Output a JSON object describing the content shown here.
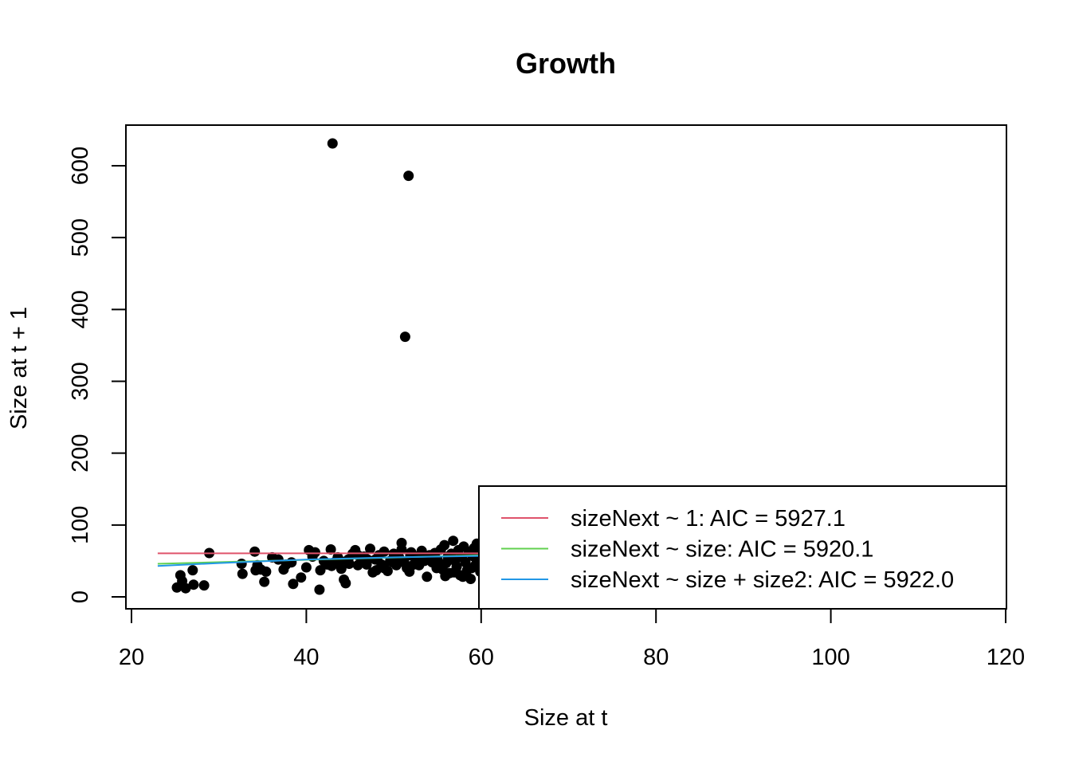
{
  "chart_data": {
    "type": "scatter",
    "title": "Growth",
    "xlabel": "Size at t",
    "ylabel": "Size at t + 1",
    "xlim": [
      20,
      120
    ],
    "ylim": [
      0,
      650
    ],
    "xticks": [
      20,
      40,
      60,
      80,
      100,
      120
    ],
    "yticks": [
      0,
      100,
      200,
      300,
      400,
      500,
      600
    ],
    "grid": false,
    "point_color": "#000000",
    "points": [
      {
        "x": 25.2,
        "y": 13
      },
      {
        "x": 25.6,
        "y": 30
      },
      {
        "x": 25.8,
        "y": 22
      },
      {
        "x": 26.2,
        "y": 12
      },
      {
        "x": 27.0,
        "y": 37
      },
      {
        "x": 27.1,
        "y": 17
      },
      {
        "x": 28.3,
        "y": 16
      },
      {
        "x": 28.9,
        "y": 61
      },
      {
        "x": 32.6,
        "y": 46
      },
      {
        "x": 32.7,
        "y": 32
      },
      {
        "x": 34.1,
        "y": 63
      },
      {
        "x": 34.2,
        "y": 37
      },
      {
        "x": 34.4,
        "y": 44
      },
      {
        "x": 34.8,
        "y": 38
      },
      {
        "x": 35.2,
        "y": 21
      },
      {
        "x": 35.4,
        "y": 35
      },
      {
        "x": 36.1,
        "y": 55
      },
      {
        "x": 36.8,
        "y": 52
      },
      {
        "x": 37.4,
        "y": 38
      },
      {
        "x": 37.7,
        "y": 45
      },
      {
        "x": 38.3,
        "y": 48
      },
      {
        "x": 38.5,
        "y": 18
      },
      {
        "x": 39.4,
        "y": 27
      },
      {
        "x": 40.0,
        "y": 41
      },
      {
        "x": 40.3,
        "y": 65
      },
      {
        "x": 40.7,
        "y": 56
      },
      {
        "x": 41.0,
        "y": 62
      },
      {
        "x": 41.5,
        "y": 10
      },
      {
        "x": 41.6,
        "y": 37
      },
      {
        "x": 42.0,
        "y": 50
      },
      {
        "x": 42.4,
        "y": 45
      },
      {
        "x": 42.8,
        "y": 66
      },
      {
        "x": 43.0,
        "y": 631
      },
      {
        "x": 43.2,
        "y": 48
      },
      {
        "x": 43.6,
        "y": 55
      },
      {
        "x": 44.0,
        "y": 39
      },
      {
        "x": 44.3,
        "y": 24
      },
      {
        "x": 44.5,
        "y": 19
      },
      {
        "x": 44.8,
        "y": 52
      },
      {
        "x": 45.3,
        "y": 60
      },
      {
        "x": 45.6,
        "y": 65
      },
      {
        "x": 45.9,
        "y": 44
      },
      {
        "x": 46.3,
        "y": 48
      },
      {
        "x": 46.6,
        "y": 56
      },
      {
        "x": 47.0,
        "y": 52
      },
      {
        "x": 47.3,
        "y": 67
      },
      {
        "x": 47.6,
        "y": 34
      },
      {
        "x": 48.0,
        "y": 37
      },
      {
        "x": 48.3,
        "y": 58
      },
      {
        "x": 48.6,
        "y": 45
      },
      {
        "x": 48.9,
        "y": 63
      },
      {
        "x": 49.3,
        "y": 36
      },
      {
        "x": 49.6,
        "y": 50
      },
      {
        "x": 50.0,
        "y": 60
      },
      {
        "x": 50.3,
        "y": 44
      },
      {
        "x": 50.6,
        "y": 55
      },
      {
        "x": 50.9,
        "y": 75
      },
      {
        "x": 51.2,
        "y": 48
      },
      {
        "x": 51.3,
        "y": 362
      },
      {
        "x": 51.5,
        "y": 40
      },
      {
        "x": 51.7,
        "y": 586
      },
      {
        "x": 51.8,
        "y": 35
      },
      {
        "x": 52.0,
        "y": 62
      },
      {
        "x": 52.3,
        "y": 45
      },
      {
        "x": 52.6,
        "y": 53
      },
      {
        "x": 52.9,
        "y": 57
      },
      {
        "x": 53.2,
        "y": 64
      },
      {
        "x": 53.5,
        "y": 50
      },
      {
        "x": 53.8,
        "y": 28
      },
      {
        "x": 54.1,
        "y": 58
      },
      {
        "x": 54.4,
        "y": 48
      },
      {
        "x": 54.7,
        "y": 61
      },
      {
        "x": 55.0,
        "y": 52
      },
      {
        "x": 55.2,
        "y": 44
      },
      {
        "x": 55.4,
        "y": 66
      },
      {
        "x": 55.6,
        "y": 38
      },
      {
        "x": 55.8,
        "y": 72
      },
      {
        "x": 56.0,
        "y": 47
      },
      {
        "x": 56.2,
        "y": 56
      },
      {
        "x": 56.4,
        "y": 33
      },
      {
        "x": 56.6,
        "y": 60
      },
      {
        "x": 56.8,
        "y": 78
      },
      {
        "x": 57.0,
        "y": 50
      },
      {
        "x": 57.2,
        "y": 42
      },
      {
        "x": 57.4,
        "y": 65
      },
      {
        "x": 57.6,
        "y": 30
      },
      {
        "x": 57.8,
        "y": 55
      },
      {
        "x": 58.0,
        "y": 70
      },
      {
        "x": 58.2,
        "y": 48
      },
      {
        "x": 58.4,
        "y": 37
      },
      {
        "x": 58.6,
        "y": 63
      },
      {
        "x": 58.8,
        "y": 25
      },
      {
        "x": 59.0,
        "y": 57
      },
      {
        "x": 59.2,
        "y": 68
      },
      {
        "x": 59.4,
        "y": 45
      },
      {
        "x": 59.6,
        "y": 52
      },
      {
        "x": 59.8,
        "y": 60
      },
      {
        "x": 59.9,
        "y": 35
      },
      {
        "x": 59.5,
        "y": 74
      },
      {
        "x": 58.9,
        "y": 40
      },
      {
        "x": 57.9,
        "y": 28
      },
      {
        "x": 56.9,
        "y": 34
      },
      {
        "x": 55.9,
        "y": 29
      },
      {
        "x": 54.9,
        "y": 40
      },
      {
        "x": 53.9,
        "y": 55
      },
      {
        "x": 52.9,
        "y": 44
      },
      {
        "x": 51.9,
        "y": 58
      },
      {
        "x": 50.9,
        "y": 66
      },
      {
        "x": 49.9,
        "y": 48
      },
      {
        "x": 48.9,
        "y": 40
      },
      {
        "x": 47.9,
        "y": 52
      },
      {
        "x": 46.9,
        "y": 45
      },
      {
        "x": 45.9,
        "y": 58
      },
      {
        "x": 44.9,
        "y": 46
      },
      {
        "x": 43.9,
        "y": 50
      },
      {
        "x": 42.9,
        "y": 43
      }
    ],
    "series": [
      {
        "name": "sizeNext ~ 1: AIC = 5927.1",
        "color": "#DF536B",
        "x": [
          23,
          60
        ],
        "y": [
          60.5,
          60.5
        ]
      },
      {
        "name": "sizeNext ~ size: AIC = 5920.1",
        "color": "#61D04F",
        "x": [
          23,
          60
        ],
        "y": [
          46,
          58
        ]
      },
      {
        "name": "sizeNext ~ size + size2: AIC = 5922.0",
        "color": "#2297E6",
        "x": [
          23,
          30,
          40,
          50,
          60
        ],
        "y": [
          43,
          47,
          52,
          55,
          57
        ]
      }
    ],
    "legend_position": "bottom-right"
  }
}
